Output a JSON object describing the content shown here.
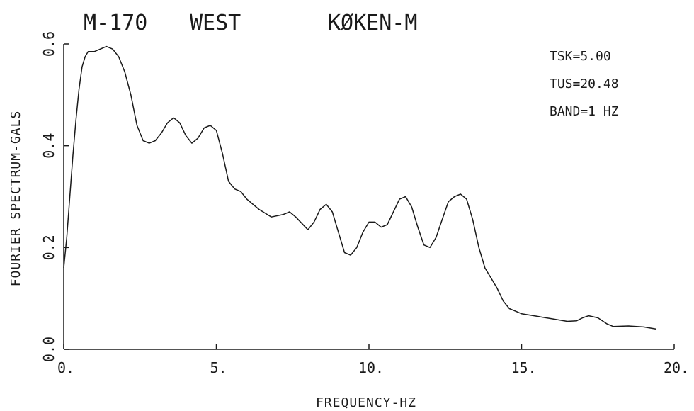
{
  "chart_data": {
    "type": "line",
    "title_parts": [
      "M-170",
      "WEST",
      "KØKEN-M"
    ],
    "xlabel": "FREQUENCY-HZ",
    "ylabel": "FOURIER SPECTRUM-GALS",
    "xlim": [
      0,
      20
    ],
    "ylim": [
      0,
      0.6
    ],
    "x_ticks": [
      0,
      5,
      10,
      15,
      20
    ],
    "x_tick_labels": [
      "0.",
      "5.",
      "10.",
      "15.",
      "20."
    ],
    "y_ticks": [
      0,
      0.2,
      0.4,
      0.6
    ],
    "y_tick_labels": [
      "0.0",
      "0.2",
      "0.4",
      "0.6"
    ],
    "annotations": [
      "TSK=5.00",
      "TUS=20.48",
      "BAND=1 HZ"
    ],
    "grid": false,
    "series": [
      {
        "x": [
          0,
          0.1,
          0.2,
          0.3,
          0.4,
          0.5,
          0.6,
          0.7,
          0.8,
          1.0,
          1.2,
          1.4,
          1.6,
          1.8,
          2.0,
          2.2,
          2.4,
          2.6,
          2.8,
          3.0,
          3.2,
          3.4,
          3.6,
          3.8,
          4.0,
          4.2,
          4.4,
          4.6,
          4.8,
          5.0,
          5.2,
          5.4,
          5.6,
          5.8,
          6.0,
          6.4,
          6.8,
          7.2,
          7.4,
          7.6,
          8.0,
          8.2,
          8.4,
          8.6,
          8.8,
          9.0,
          9.2,
          9.4,
          9.6,
          9.8,
          10.0,
          10.2,
          10.4,
          10.6,
          10.8,
          11.0,
          11.2,
          11.4,
          11.6,
          11.8,
          12.0,
          12.2,
          12.4,
          12.6,
          12.8,
          13.0,
          13.2,
          13.4,
          13.6,
          13.8,
          14.0,
          14.2,
          14.4,
          14.6,
          14.8,
          15.0,
          15.5,
          16.0,
          16.5,
          16.8,
          17.0,
          17.2,
          17.5,
          17.8,
          18.0,
          18.5,
          19.0,
          19.4
        ],
        "y": [
          0.16,
          0.22,
          0.3,
          0.38,
          0.45,
          0.51,
          0.555,
          0.575,
          0.585,
          0.585,
          0.59,
          0.595,
          0.59,
          0.575,
          0.545,
          0.5,
          0.44,
          0.41,
          0.405,
          0.41,
          0.425,
          0.445,
          0.455,
          0.445,
          0.42,
          0.405,
          0.415,
          0.435,
          0.44,
          0.43,
          0.385,
          0.33,
          0.315,
          0.31,
          0.295,
          0.275,
          0.26,
          0.265,
          0.27,
          0.26,
          0.235,
          0.25,
          0.275,
          0.285,
          0.27,
          0.23,
          0.19,
          0.185,
          0.2,
          0.23,
          0.25,
          0.25,
          0.24,
          0.245,
          0.27,
          0.295,
          0.3,
          0.28,
          0.24,
          0.205,
          0.2,
          0.22,
          0.255,
          0.29,
          0.3,
          0.305,
          0.295,
          0.255,
          0.2,
          0.16,
          0.14,
          0.12,
          0.095,
          0.08,
          0.075,
          0.07,
          0.065,
          0.06,
          0.055,
          0.056,
          0.062,
          0.066,
          0.062,
          0.05,
          0.045,
          0.046,
          0.044,
          0.04
        ]
      }
    ]
  }
}
